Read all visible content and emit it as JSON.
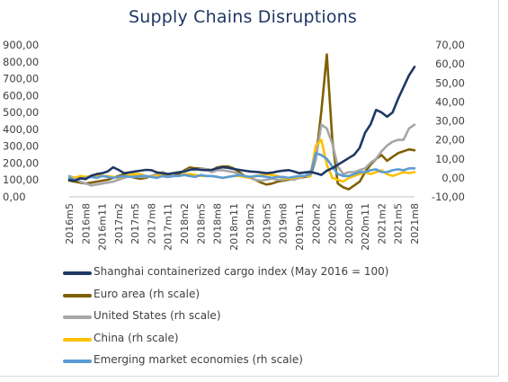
{
  "chart_data": {
    "type": "line",
    "title": "Supply Chains Disruptions",
    "xlabel": "",
    "ylabel": "",
    "categories": [
      "2016m5",
      "2016m6",
      "2016m7",
      "2016m8",
      "2016m9",
      "2016m10",
      "2016m11",
      "2016m12",
      "2017m1",
      "2017m2",
      "2017m3",
      "2017m4",
      "2017m5",
      "2017m6",
      "2017m7",
      "2017m8",
      "2017m9",
      "2017m10",
      "2017m11",
      "2017m12",
      "2018m1",
      "2018m2",
      "2018m3",
      "2018m4",
      "2018m5",
      "2018m6",
      "2018m7",
      "2018m8",
      "2018m9",
      "2018m10",
      "2018m11",
      "2018m12",
      "2019m1",
      "2019m2",
      "2019m3",
      "2019m4",
      "2019m5",
      "2019m6",
      "2019m7",
      "2019m8",
      "2019m9",
      "2019m10",
      "2019m11",
      "2019m12",
      "2020m1",
      "2020m2",
      "2020m3",
      "2020m4",
      "2020m5",
      "2020m6",
      "2020m7",
      "2020m8",
      "2020m9",
      "2020m10",
      "2020m11",
      "2020m12",
      "2021m1",
      "2021m2",
      "2021m3",
      "2021m4",
      "2021m5",
      "2021m6",
      "2021m7",
      "2021m8"
    ],
    "tick_labels": [
      "2016m5",
      "2016m8",
      "2016m11",
      "2017m2",
      "2017m5",
      "2017m8",
      "2017m11",
      "2018m2",
      "2018m5",
      "2018m8",
      "2018m11",
      "2019m2",
      "2019m5",
      "2019m8",
      "2019m11",
      "2020m2",
      "2020m5",
      "2020m8",
      "2020m11",
      "2021m2",
      "2021m5",
      "2021m8"
    ],
    "left_axis": {
      "ylim": [
        0,
        900
      ],
      "ticks": [
        "0,00",
        "100,00",
        "200,00",
        "300,00",
        "400,00",
        "500,00",
        "600,00",
        "700,00",
        "800,00",
        "900,00"
      ]
    },
    "right_axis": {
      "ylim": [
        -10,
        70
      ],
      "ticks": [
        "-10,00",
        "0,00",
        "10,00",
        "20,00",
        "30,00",
        "40,00",
        "50,00",
        "60,00",
        "70,00"
      ]
    },
    "grid": false,
    "legend_position": "bottom",
    "series": [
      {
        "name": "Shanghai containerized cargo index (May 2016 = 100)",
        "axis": "left",
        "color": "#1f3864",
        "values": [
          100,
          95,
          110,
          105,
          125,
          135,
          140,
          150,
          175,
          160,
          140,
          145,
          150,
          155,
          160,
          158,
          145,
          140,
          135,
          140,
          145,
          150,
          160,
          165,
          160,
          158,
          160,
          170,
          175,
          172,
          165,
          160,
          155,
          150,
          148,
          145,
          140,
          143,
          150,
          155,
          158,
          150,
          140,
          145,
          148,
          140,
          130,
          155,
          170,
          190,
          210,
          230,
          250,
          290,
          380,
          430,
          515,
          500,
          475,
          500,
          580,
          650,
          720,
          770
        ]
      },
      {
        "name": "Euro area (rh scale)",
        "axis": "right",
        "color": "#7f6000",
        "values": [
          -1.5,
          -2,
          -2.5,
          -3,
          -2.5,
          -2,
          -1.5,
          -1,
          0,
          1,
          2,
          1,
          0,
          -0.5,
          0,
          1,
          2,
          1,
          0.5,
          1,
          2,
          4,
          5.5,
          5,
          5,
          4.5,
          4,
          5.5,
          6,
          6,
          5,
          3,
          1,
          0,
          -1,
          -2.5,
          -3.5,
          -3,
          -2,
          -1.5,
          -1,
          -0.5,
          0,
          0.5,
          1,
          10,
          35,
          65,
          20,
          -3,
          -5,
          -6,
          -4,
          -2,
          3,
          7,
          10,
          12,
          9,
          11,
          13,
          14,
          15,
          14.5
        ]
      },
      {
        "name": "United States (rh scale)",
        "axis": "right",
        "color": "#a6a6a6",
        "values": [
          1,
          0,
          -2,
          -3,
          -4,
          -3.5,
          -3,
          -2.5,
          -2,
          -1,
          0,
          1,
          1,
          0.5,
          0.5,
          1,
          2,
          3,
          2,
          2.5,
          3,
          3.5,
          4.5,
          4,
          5,
          4.5,
          3,
          4,
          4,
          3.5,
          3,
          2,
          1,
          0,
          -1,
          -1.5,
          -1,
          -0.5,
          -1,
          -1,
          -0.5,
          -1,
          0,
          1,
          3,
          10,
          28,
          26,
          18,
          6,
          2,
          3,
          3,
          4,
          5,
          8,
          10,
          14,
          17,
          19,
          20,
          20,
          26,
          28
        ]
      },
      {
        "name": "China (rh scale)",
        "axis": "right",
        "color": "#ffc000",
        "values": [
          0,
          0,
          1,
          0.5,
          1,
          1,
          1,
          1,
          0.5,
          0,
          1,
          1.5,
          2,
          2,
          1,
          0.5,
          1,
          1.5,
          2,
          1,
          1,
          2,
          2,
          1.5,
          1,
          1,
          1,
          0.5,
          0,
          0.5,
          1,
          1,
          0.5,
          0,
          1,
          1.5,
          2,
          1.5,
          1,
          0,
          -0.5,
          0,
          0.5,
          1,
          1,
          17,
          20,
          7,
          0,
          -1,
          -2,
          0,
          1,
          2,
          3,
          2,
          3,
          4,
          2,
          1,
          2,
          3,
          2.5,
          3
        ]
      },
      {
        "name": "Emerging market economies (rh scale)",
        "axis": "right",
        "color": "#5b9bd5",
        "values": [
          0,
          -1,
          -0.5,
          0,
          0.5,
          0,
          1,
          0.5,
          0,
          0.5,
          1,
          0.5,
          0.5,
          1,
          1,
          0.5,
          0,
          1,
          0.5,
          1,
          1,
          1.5,
          1,
          0.5,
          1.5,
          1,
          1,
          0.5,
          0,
          0.5,
          1,
          1.5,
          1,
          0.5,
          1,
          1,
          0.5,
          0,
          0.5,
          0.5,
          0,
          0.5,
          1,
          1,
          2,
          13,
          12,
          10,
          6,
          2,
          1,
          1,
          2,
          3,
          3,
          4,
          4.5,
          3,
          3,
          4,
          4.5,
          4,
          5,
          5
        ]
      }
    ]
  }
}
